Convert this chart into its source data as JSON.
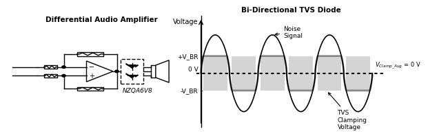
{
  "bg_color": "#ffffff",
  "left_title": "Differential Audio Amplifier",
  "right_title": "Bi-Directional TVS Diode",
  "right_ylabel": "Voltage",
  "clamp_label": "V_Clamp_Avg = 0 V",
  "noise_label": "Noise\nSignal",
  "tvs_label": "TVS\nClamping\nVoltage",
  "vbr_pos_label": "+V_BR",
  "vbr_neg_label": "-V_BR",
  "zero_label": "0 V",
  "part_label": "NZQA6V8",
  "line_color": "#000000",
  "gray_color": "#999999",
  "dashed_color": "#000000"
}
